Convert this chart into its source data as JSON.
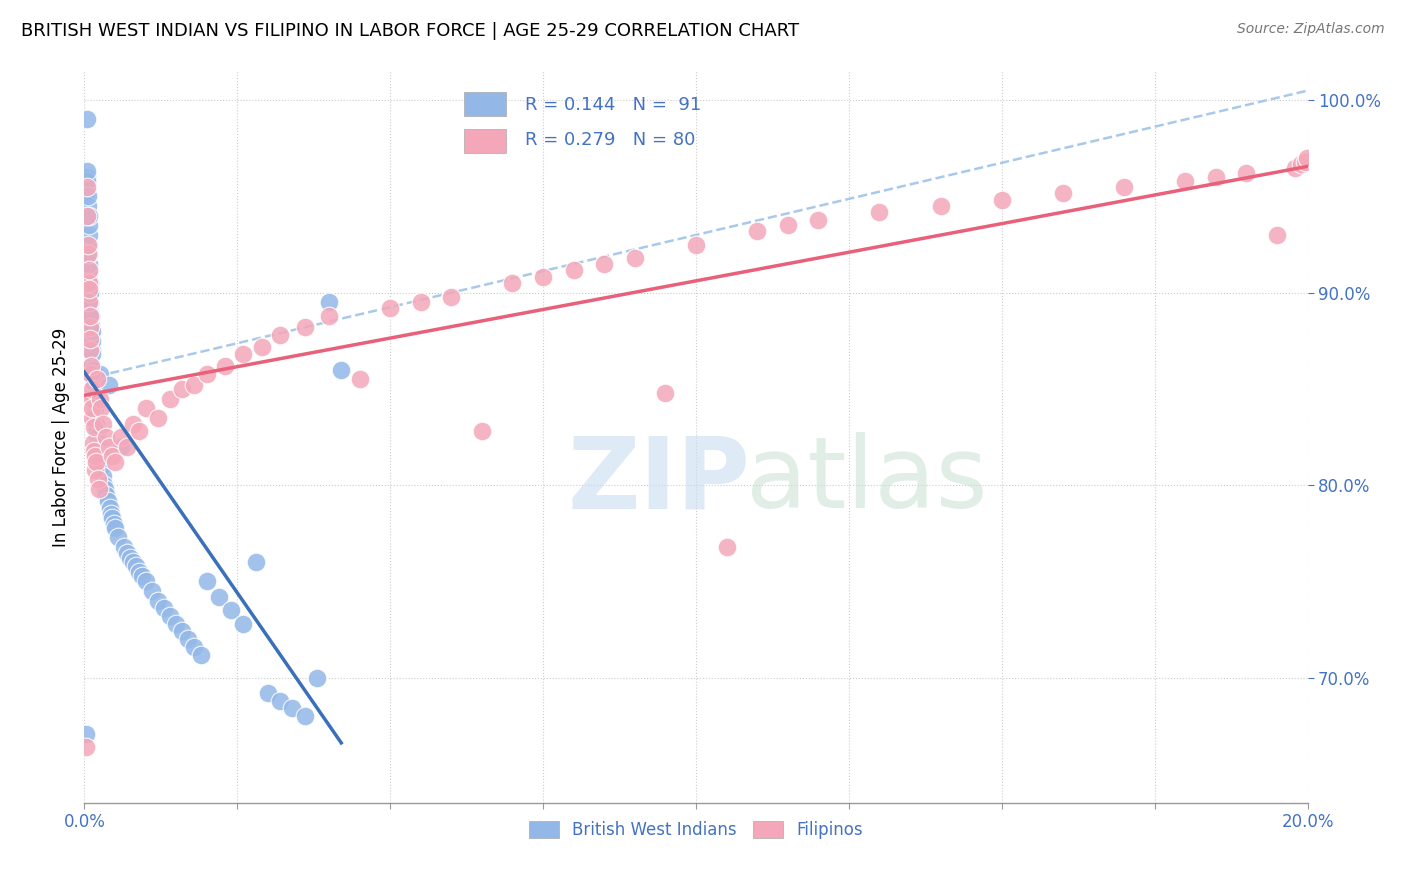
{
  "title": "BRITISH WEST INDIAN VS FILIPINO IN LABOR FORCE | AGE 25-29 CORRELATION CHART",
  "source": "Source: ZipAtlas.com",
  "ylabel": "In Labor Force | Age 25-29",
  "xlim": [
    0.0,
    0.2
  ],
  "ylim": [
    0.635,
    1.015
  ],
  "yticks": [
    0.7,
    0.8,
    0.9,
    1.0
  ],
  "ytick_labels": [
    "70.0%",
    "80.0%",
    "90.0%",
    "100.0%"
  ],
  "xtick_positions": [
    0.0,
    0.025,
    0.05,
    0.075,
    0.1,
    0.125,
    0.15,
    0.175,
    0.2
  ],
  "xtick_labels": [
    "0.0%",
    "",
    "",
    "",
    "",
    "",
    "",
    "",
    "20.0%"
  ],
  "legend_r1": "R = 0.144",
  "legend_n1": "N =  91",
  "legend_r2": "R = 0.279",
  "legend_n2": "N = 80",
  "blue_color": "#93b8e8",
  "pink_color": "#f4a7b9",
  "trend_blue": "#3a6fba",
  "trend_pink": "#e8607a",
  "dash_color": "#a0c4e8",
  "label1": "British West Indians",
  "label2": "Filipinos",
  "bwi_x": [
    0.0003,
    0.0004,
    0.0004,
    0.0005,
    0.0005,
    0.0005,
    0.0006,
    0.0006,
    0.0006,
    0.0007,
    0.0007,
    0.0007,
    0.0007,
    0.0008,
    0.0008,
    0.0008,
    0.0009,
    0.0009,
    0.0009,
    0.001,
    0.001,
    0.001,
    0.001,
    0.0011,
    0.0011,
    0.0011,
    0.0012,
    0.0012,
    0.0012,
    0.0013,
    0.0013,
    0.0014,
    0.0014,
    0.0015,
    0.0015,
    0.0016,
    0.0016,
    0.0017,
    0.0018,
    0.0019,
    0.002,
    0.0021,
    0.0022,
    0.0023,
    0.0024,
    0.0025,
    0.0026,
    0.0027,
    0.0028,
    0.003,
    0.0032,
    0.0034,
    0.0036,
    0.0038,
    0.004,
    0.0042,
    0.0044,
    0.0046,
    0.0048,
    0.005,
    0.0055,
    0.006,
    0.0065,
    0.007,
    0.0075,
    0.008,
    0.0085,
    0.009,
    0.0095,
    0.01,
    0.011,
    0.012,
    0.013,
    0.014,
    0.015,
    0.016,
    0.017,
    0.018,
    0.019,
    0.02,
    0.022,
    0.024,
    0.026,
    0.028,
    0.03,
    0.032,
    0.034,
    0.036,
    0.038,
    0.04,
    0.042
  ],
  "bwi_y": [
    0.671,
    0.96,
    0.99,
    0.953,
    0.958,
    0.963,
    0.94,
    0.945,
    0.95,
    0.925,
    0.93,
    0.935,
    0.94,
    0.91,
    0.915,
    0.92,
    0.895,
    0.9,
    0.905,
    0.885,
    0.89,
    0.895,
    0.9,
    0.878,
    0.883,
    0.888,
    0.87,
    0.875,
    0.88,
    0.862,
    0.868,
    0.855,
    0.86,
    0.848,
    0.853,
    0.84,
    0.846,
    0.838,
    0.835,
    0.832,
    0.828,
    0.825,
    0.822,
    0.82,
    0.818,
    0.858,
    0.815,
    0.813,
    0.81,
    0.805,
    0.8,
    0.798,
    0.795,
    0.792,
    0.852,
    0.788,
    0.785,
    0.783,
    0.78,
    0.778,
    0.773,
    0.82,
    0.768,
    0.765,
    0.762,
    0.76,
    0.758,
    0.755,
    0.753,
    0.75,
    0.745,
    0.74,
    0.736,
    0.732,
    0.728,
    0.724,
    0.72,
    0.716,
    0.712,
    0.75,
    0.742,
    0.735,
    0.728,
    0.76,
    0.692,
    0.688,
    0.684,
    0.68,
    0.7,
    0.895,
    0.86
  ],
  "fil_x": [
    0.0003,
    0.0004,
    0.0005,
    0.0006,
    0.0006,
    0.0007,
    0.0007,
    0.0008,
    0.0008,
    0.0009,
    0.0009,
    0.001,
    0.001,
    0.0011,
    0.0011,
    0.0012,
    0.0012,
    0.0013,
    0.0013,
    0.0014,
    0.0015,
    0.0016,
    0.0017,
    0.0018,
    0.0019,
    0.002,
    0.0022,
    0.0024,
    0.0026,
    0.0028,
    0.003,
    0.0035,
    0.004,
    0.0045,
    0.005,
    0.006,
    0.007,
    0.008,
    0.009,
    0.01,
    0.012,
    0.014,
    0.016,
    0.018,
    0.02,
    0.023,
    0.026,
    0.029,
    0.032,
    0.036,
    0.04,
    0.045,
    0.05,
    0.055,
    0.06,
    0.065,
    0.07,
    0.075,
    0.08,
    0.085,
    0.09,
    0.095,
    0.1,
    0.105,
    0.11,
    0.115,
    0.12,
    0.13,
    0.14,
    0.15,
    0.16,
    0.17,
    0.18,
    0.185,
    0.19,
    0.195,
    0.198,
    0.199,
    0.1995,
    0.1999
  ],
  "fil_y": [
    0.664,
    0.955,
    0.94,
    0.92,
    0.925,
    0.905,
    0.912,
    0.895,
    0.902,
    0.882,
    0.888,
    0.87,
    0.876,
    0.858,
    0.862,
    0.845,
    0.85,
    0.835,
    0.84,
    0.822,
    0.83,
    0.818,
    0.808,
    0.815,
    0.812,
    0.855,
    0.803,
    0.798,
    0.845,
    0.84,
    0.832,
    0.825,
    0.82,
    0.815,
    0.812,
    0.825,
    0.82,
    0.832,
    0.828,
    0.84,
    0.835,
    0.845,
    0.85,
    0.852,
    0.858,
    0.862,
    0.868,
    0.872,
    0.878,
    0.882,
    0.888,
    0.855,
    0.892,
    0.895,
    0.898,
    0.828,
    0.905,
    0.908,
    0.912,
    0.915,
    0.918,
    0.848,
    0.925,
    0.768,
    0.932,
    0.935,
    0.938,
    0.942,
    0.945,
    0.948,
    0.952,
    0.955,
    0.958,
    0.96,
    0.962,
    0.93,
    0.965,
    0.967,
    0.968,
    0.97
  ]
}
